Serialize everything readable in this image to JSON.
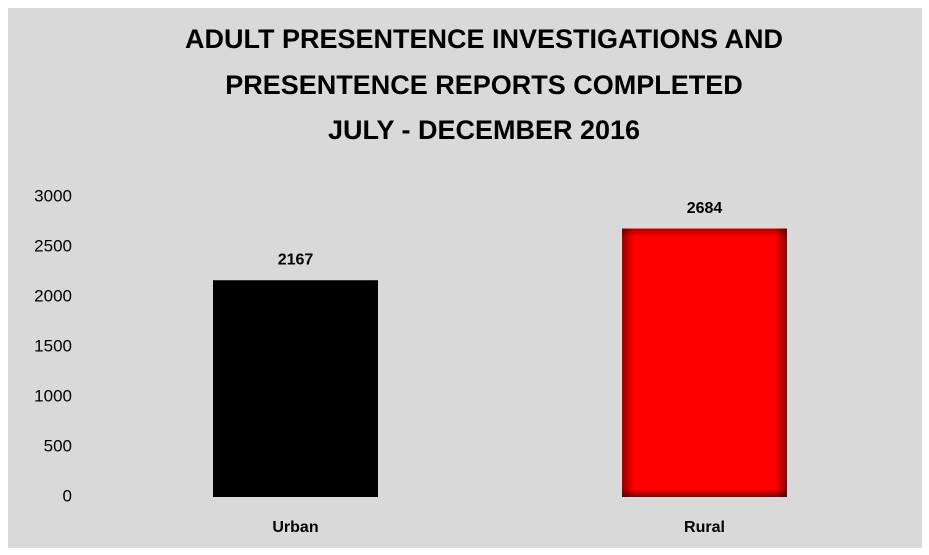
{
  "chart_data": {
    "type": "bar",
    "title": [
      "ADULT PRESENTENCE INVESTIGATIONS AND",
      "PRESENTENCE REPORTS COMPLETED",
      "JULY - DECEMBER 2016"
    ],
    "categories": [
      "Urban",
      "Rural"
    ],
    "values": [
      2167,
      2684
    ],
    "colors": [
      "#000000",
      "#ff0000"
    ],
    "ylim": [
      0,
      3000
    ],
    "yticks": [
      0,
      500,
      1000,
      1500,
      2000,
      2500,
      3000
    ],
    "grid": false
  }
}
